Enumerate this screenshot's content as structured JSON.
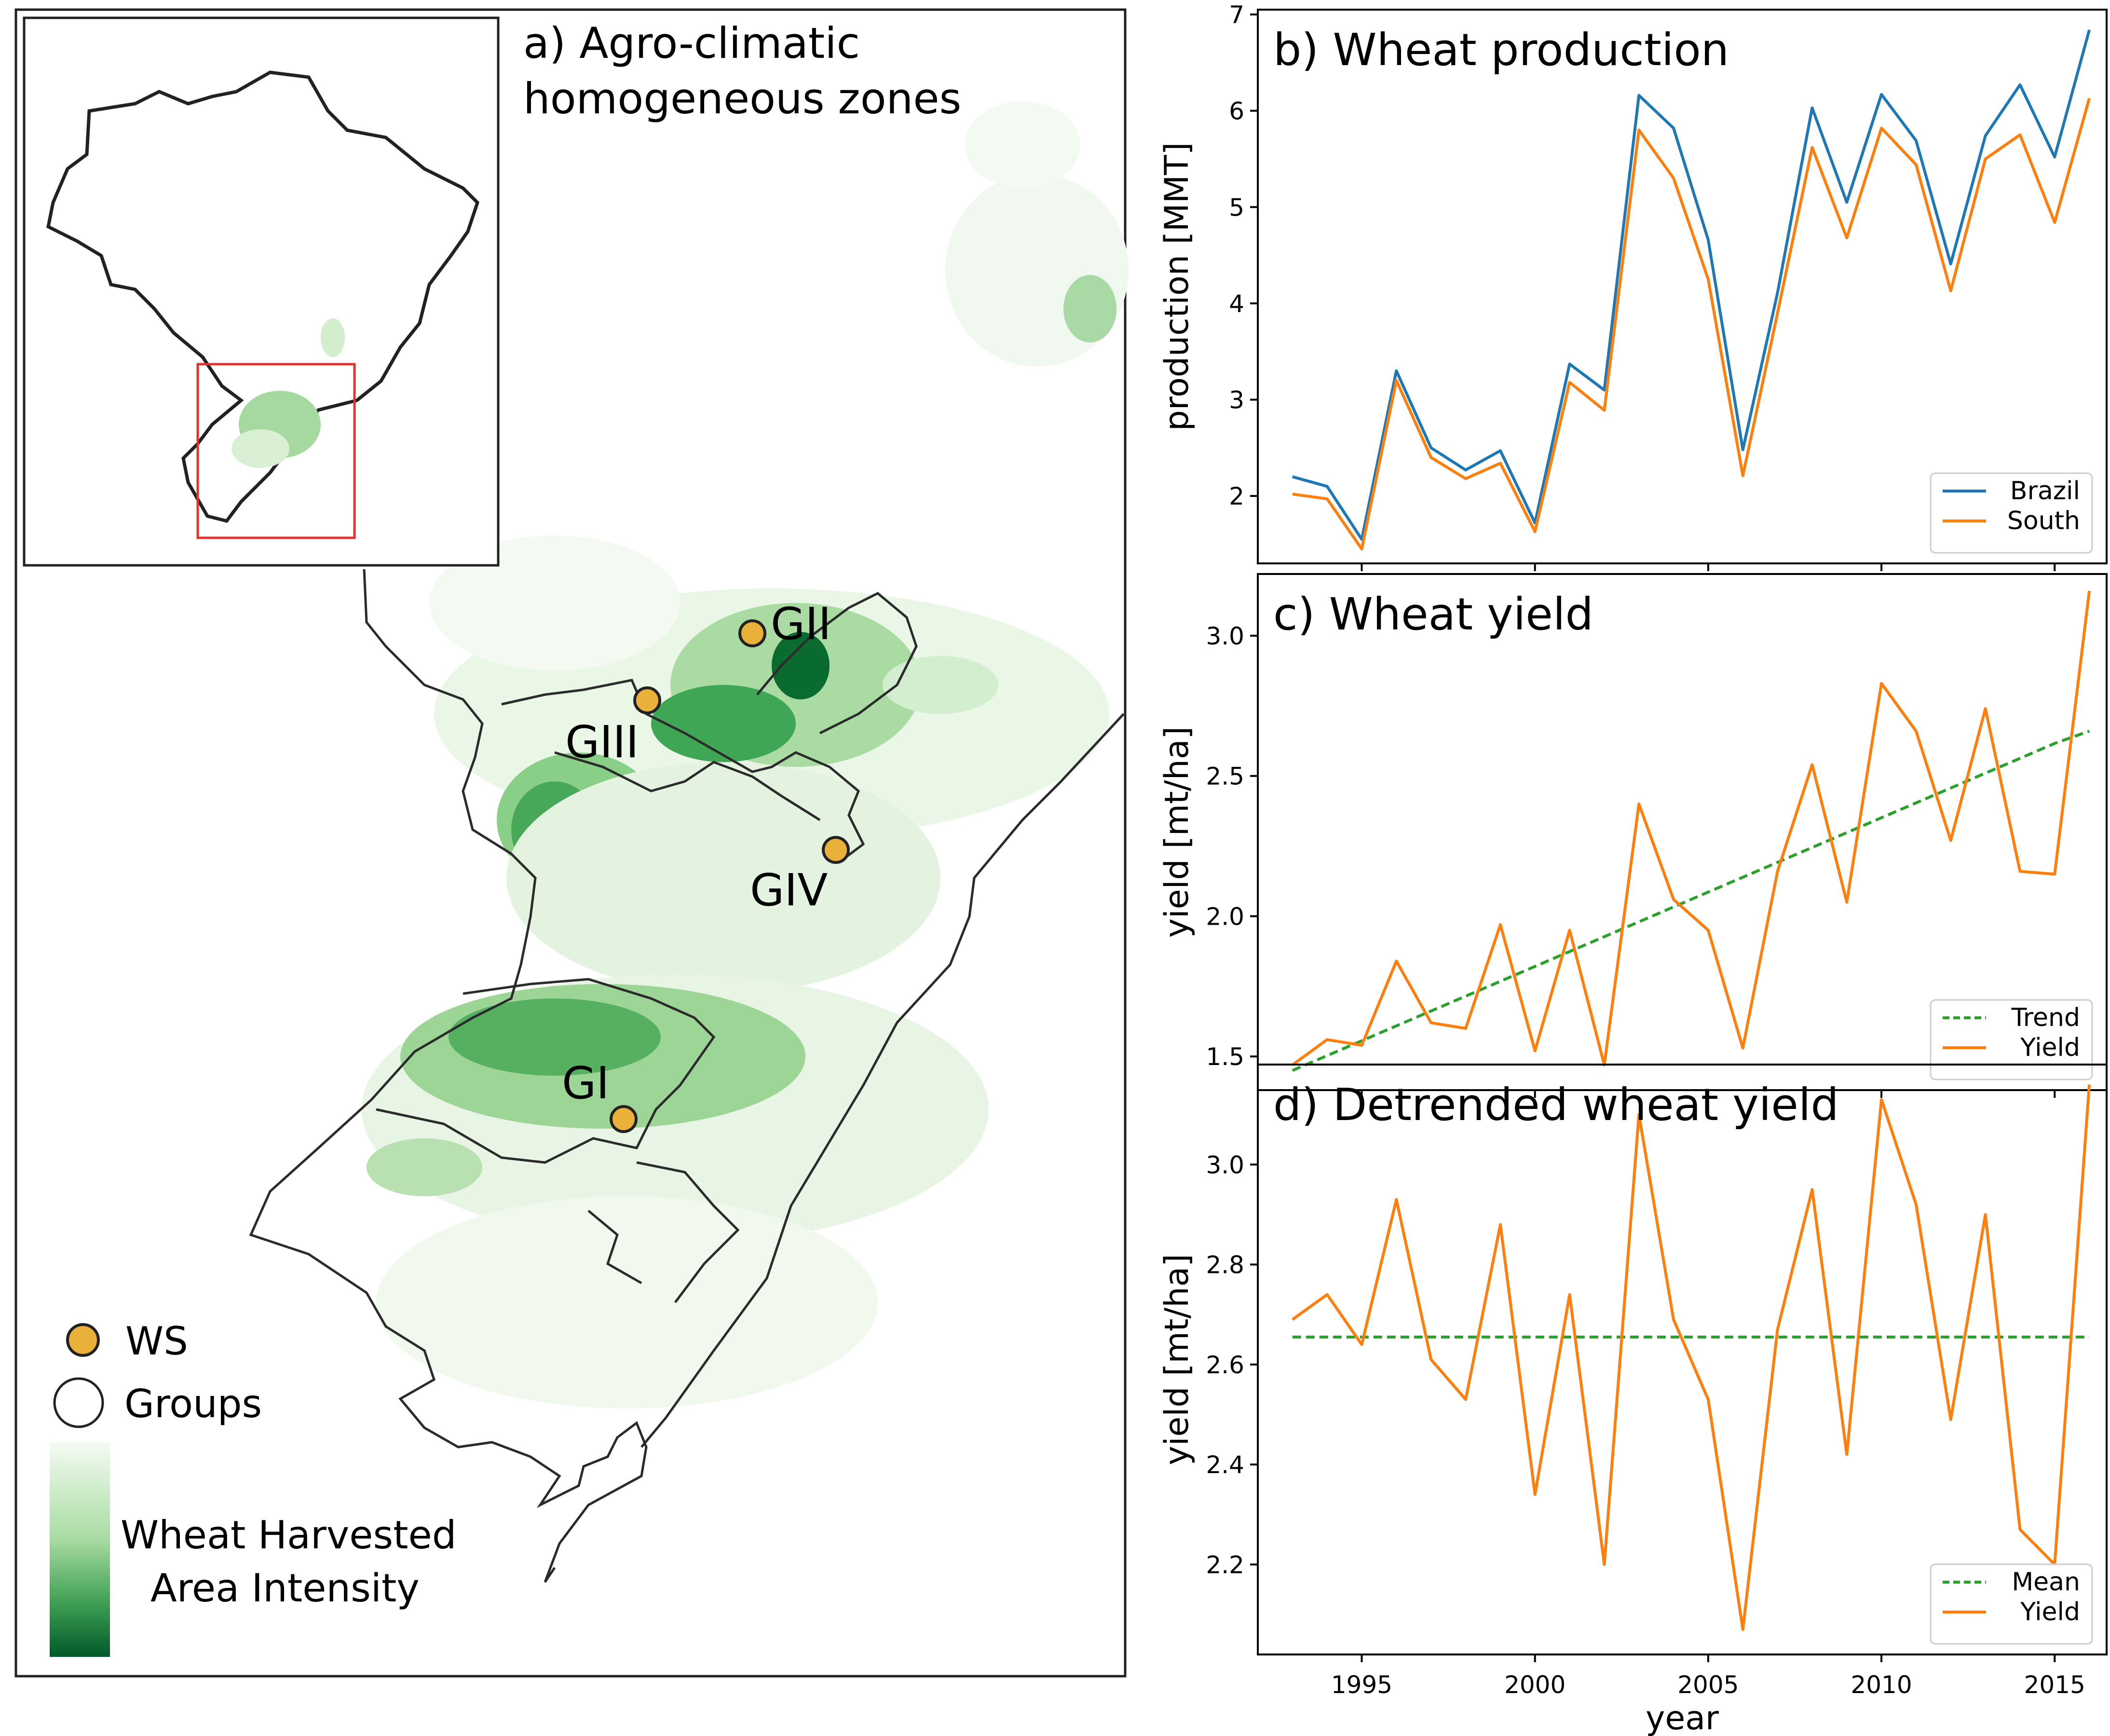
{
  "map_panel": {
    "title_line1": "a) Agro-climatic",
    "title_line2": "homogeneous zones",
    "groups": [
      "GI",
      "GII",
      "GIII",
      "GIV"
    ],
    "legend_ws": "WS",
    "legend_groups": "Groups",
    "colorbar_label_line1": "Wheat Harvested",
    "colorbar_label_line2": "Area Intensity",
    "colors": {
      "ws_marker": "#E9B03A",
      "green_dark": "#00662B",
      "green_light": "#EEF7EC",
      "inset_box": "#E33030"
    }
  },
  "chart_data": [
    {
      "type": "line",
      "title": "b) Wheat production",
      "xlabel": "",
      "ylabel": "production [MMT]",
      "xlim": [
        1992,
        2016.5
      ],
      "ylim": [
        1.3,
        7.05
      ],
      "yticks": [
        2,
        3,
        4,
        5,
        6,
        7
      ],
      "xticks": [
        1995,
        2000,
        2005,
        2010,
        2015
      ],
      "show_xtick_labels": false,
      "grid": false,
      "legend_position": "lower-right",
      "x": [
        1993,
        1994,
        1995,
        1996,
        1997,
        1998,
        1999,
        2000,
        2001,
        2002,
        2003,
        2004,
        2005,
        2006,
        2007,
        2008,
        2009,
        2010,
        2011,
        2012,
        2013,
        2014,
        2015,
        2016
      ],
      "series": [
        {
          "name": "Brazil",
          "color": "#1F77B4",
          "dash": "solid",
          "values": [
            2.2,
            2.1,
            1.55,
            3.3,
            2.5,
            2.27,
            2.47,
            1.72,
            3.37,
            3.1,
            6.16,
            5.82,
            4.66,
            2.48,
            4.11,
            6.03,
            5.05,
            6.17,
            5.69,
            4.41,
            5.74,
            6.27,
            5.52,
            6.84
          ]
        },
        {
          "name": "South",
          "color": "#FF7F0E",
          "dash": "solid",
          "values": [
            2.02,
            1.97,
            1.45,
            3.2,
            2.4,
            2.18,
            2.34,
            1.63,
            3.18,
            2.89,
            5.8,
            5.3,
            4.25,
            2.21,
            3.9,
            5.62,
            4.68,
            5.82,
            5.44,
            4.13,
            5.5,
            5.75,
            4.84,
            6.13
          ]
        }
      ]
    },
    {
      "type": "line",
      "title": "c) Wheat yield",
      "xlabel": "",
      "ylabel": "yield [mt/ha]",
      "xlim": [
        1992,
        2016.5
      ],
      "ylim": [
        1.38,
        3.22
      ],
      "yticks": [
        1.5,
        2.0,
        2.5,
        3.0
      ],
      "ytick_labels": [
        "1.5",
        "2.0",
        "2.5",
        "3.0"
      ],
      "xticks": [
        1995,
        2000,
        2005,
        2010,
        2015
      ],
      "show_xtick_labels": false,
      "grid": false,
      "legend_position": "lower-right",
      "x": [
        1993,
        1994,
        1995,
        1996,
        1997,
        1998,
        1999,
        2000,
        2001,
        2002,
        2003,
        2004,
        2005,
        2006,
        2007,
        2008,
        2009,
        2010,
        2011,
        2012,
        2013,
        2014,
        2015,
        2016
      ],
      "series": [
        {
          "name": "Trend",
          "color": "#2CA02C",
          "dash": "dashed",
          "values": [
            1.45,
            1.503,
            1.556,
            1.609,
            1.662,
            1.715,
            1.768,
            1.821,
            1.874,
            1.927,
            1.98,
            2.033,
            2.086,
            2.139,
            2.192,
            2.245,
            2.298,
            2.351,
            2.404,
            2.457,
            2.51,
            2.563,
            2.616,
            2.66
          ]
        },
        {
          "name": "Yield",
          "color": "#FF7F0E",
          "dash": "solid",
          "values": [
            1.47,
            1.56,
            1.54,
            1.84,
            1.62,
            1.6,
            1.97,
            1.52,
            1.95,
            1.47,
            2.4,
            2.06,
            1.95,
            1.53,
            2.16,
            2.54,
            2.05,
            2.83,
            2.66,
            2.27,
            2.74,
            2.16,
            2.15,
            3.16
          ]
        }
      ]
    },
    {
      "type": "line",
      "title": "d) Detrended wheat yield",
      "xlabel": "year",
      "ylabel": "yield [mt/ha]",
      "xlim": [
        1992,
        2016.5
      ],
      "ylim": [
        2.02,
        3.2
      ],
      "yticks": [
        2.2,
        2.4,
        2.6,
        2.8,
        3.0
      ],
      "ytick_labels": [
        "2.2",
        "2.4",
        "2.6",
        "2.8",
        "3.0"
      ],
      "xticks": [
        1995,
        2000,
        2005,
        2010,
        2015
      ],
      "show_xtick_labels": true,
      "grid": false,
      "legend_position": "lower-right",
      "x": [
        1993,
        1994,
        1995,
        1996,
        1997,
        1998,
        1999,
        2000,
        2001,
        2002,
        2003,
        2004,
        2005,
        2006,
        2007,
        2008,
        2009,
        2010,
        2011,
        2012,
        2013,
        2014,
        2015,
        2016
      ],
      "series": [
        {
          "name": "Mean",
          "color": "#2CA02C",
          "dash": "dashed",
          "values": [
            2.655,
            2.655,
            2.655,
            2.655,
            2.655,
            2.655,
            2.655,
            2.655,
            2.655,
            2.655,
            2.655,
            2.655,
            2.655,
            2.655,
            2.655,
            2.655,
            2.655,
            2.655,
            2.655,
            2.655,
            2.655,
            2.655,
            2.655,
            2.655
          ]
        },
        {
          "name": "Yield",
          "color": "#FF7F0E",
          "dash": "solid",
          "values": [
            2.69,
            2.74,
            2.64,
            2.93,
            2.61,
            2.53,
            2.88,
            2.34,
            2.74,
            2.2,
            3.1,
            2.69,
            2.53,
            2.07,
            2.67,
            2.95,
            2.42,
            3.13,
            2.92,
            2.49,
            2.9,
            2.27,
            2.2,
            3.16
          ]
        }
      ]
    }
  ]
}
